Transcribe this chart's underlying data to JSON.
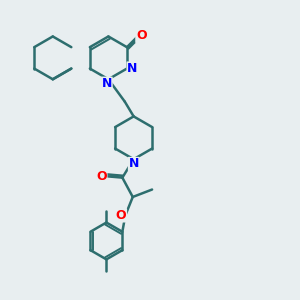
{
  "background_color": "#e8eef0",
  "bond_color": "#2d6e6e",
  "bond_width": 1.8,
  "atom_colors": {
    "N": "#0000ff",
    "O": "#ff0000",
    "C": "#2d6e6e"
  },
  "figsize": [
    3.0,
    3.0
  ],
  "dpi": 100
}
